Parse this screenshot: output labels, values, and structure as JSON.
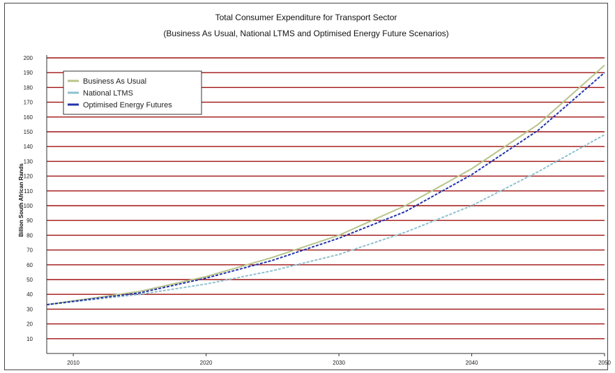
{
  "chart_data": {
    "type": "line",
    "title": "Total Consumer Expenditure for Transport Sector",
    "subtitle": "(Business As Usual, National LTMS and Optimised Energy Future Scenarios)",
    "xlabel": "",
    "ylabel": "Billion South African Rands",
    "xlim": [
      2008,
      2050
    ],
    "ylim": [
      0,
      200
    ],
    "x_ticks": [
      2010,
      2020,
      2030,
      2040,
      2050
    ],
    "y_ticks": [
      10,
      20,
      30,
      40,
      50,
      60,
      70,
      80,
      90,
      100,
      110,
      120,
      130,
      140,
      150,
      160,
      170,
      180,
      190,
      200
    ],
    "grid": true,
    "grid_color": "#a01010",
    "legend_position": "top-left",
    "series": [
      {
        "name": "Business As Usual",
        "color": "#b7c48a",
        "x": [
          2008,
          2015,
          2020,
          2025,
          2030,
          2035,
          2040,
          2045,
          2050
        ],
        "values": [
          33,
          42,
          52,
          65,
          80,
          100,
          125,
          155,
          195
        ]
      },
      {
        "name": "National LTMS",
        "color": "#8fc0d0",
        "x": [
          2008,
          2015,
          2020,
          2025,
          2030,
          2035,
          2040,
          2045,
          2050
        ],
        "values": [
          33,
          40,
          47,
          56,
          67,
          82,
          100,
          123,
          148
        ]
      },
      {
        "name": "Optimised Energy Futures",
        "color": "#2233aa",
        "x": [
          2008,
          2015,
          2020,
          2025,
          2030,
          2035,
          2040,
          2045,
          2050
        ],
        "values": [
          33,
          41,
          51,
          63,
          78,
          96,
          121,
          151,
          190
        ]
      }
    ]
  }
}
